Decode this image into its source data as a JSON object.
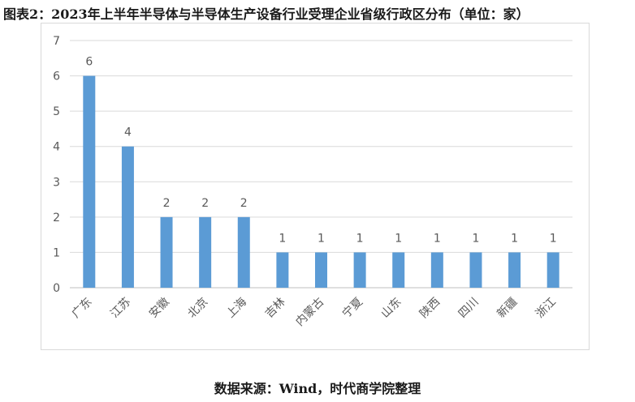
{
  "title": "图表2：2023年上半年半导体与半导体生产设备行业受理企业省级行政区分布（单位：家）",
  "source": "数据来源：Wind，时代商学院整理",
  "chart_data": {
    "type": "bar",
    "title": "图表2：2023年上半年半导体与半导体生产设备行业受理企业省级行政区分布（单位：家）",
    "categories": [
      "广东",
      "江苏",
      "安徽",
      "北京",
      "上海",
      "吉林",
      "内蒙古",
      "宁夏",
      "山东",
      "陕西",
      "四川",
      "新疆",
      "浙江"
    ],
    "values": [
      6,
      4,
      2,
      2,
      2,
      1,
      1,
      1,
      1,
      1,
      1,
      1,
      1
    ],
    "yticks": [
      0,
      1,
      2,
      3,
      4,
      5,
      6,
      7
    ],
    "ylim": [
      0,
      7
    ],
    "grid": true,
    "legend": "none",
    "data_labels": true,
    "colors": {
      "bar": "#5b9bd5",
      "grid": "#d9d9d9",
      "text": "#595959"
    }
  }
}
